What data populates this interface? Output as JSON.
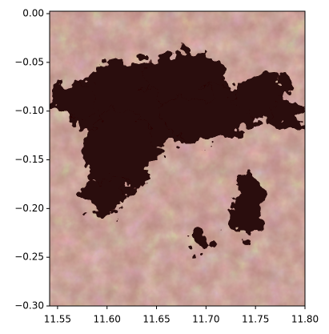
{
  "chart_data": {
    "type": "image",
    "xlim": [
      11.542,
      11.8
    ],
    "ylim": [
      -0.3,
      0.0025
    ],
    "xticks": [
      11.55,
      {
        "value": 11.6,
        "label": "11.60"
      },
      11.65,
      {
        "value": 11.7,
        "label": "11.70"
      },
      11.75,
      {
        "value": 11.8,
        "label": "11.80"
      }
    ],
    "yticks": [
      {
        "value": 0,
        "label": "0.00"
      },
      {
        "value": -0.05,
        "label": "−0.05"
      },
      {
        "value": -0.1,
        "label": "−0.10"
      },
      {
        "value": -0.15,
        "label": "−0.15"
      },
      {
        "value": -0.2,
        "label": "−0.20"
      },
      {
        "value": -0.25,
        "label": "−0.25"
      },
      {
        "value": -0.3,
        "label": "−0.30"
      }
    ]
  }
}
